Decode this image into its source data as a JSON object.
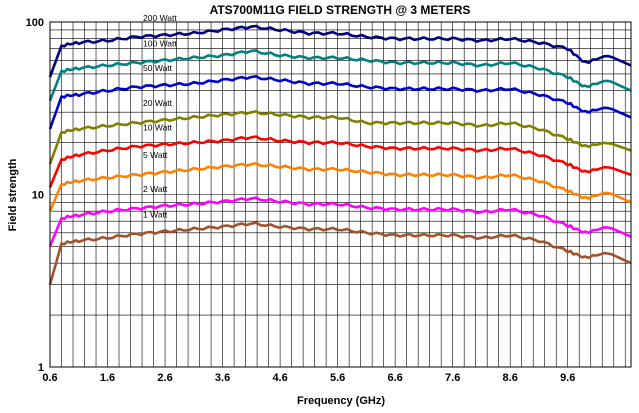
{
  "chart_data": {
    "type": "line",
    "title": "ATS700M11G FIELD STRENGTH @ 3 METERS",
    "xlabel": "Frequency (GHz)",
    "ylabel": "Field strength",
    "yscale": "log",
    "xlim": [
      0.6,
      10.7
    ],
    "ylim": [
      1,
      100
    ],
    "xticks": [
      "0.6",
      "1.6",
      "2.6",
      "3.6",
      "4.6",
      "5.6",
      "6.6",
      "7.6",
      "8.6",
      "9.6"
    ],
    "yticks": [
      "1",
      "10",
      "100"
    ],
    "grid": true,
    "legend": "inline labels",
    "x": [
      0.6,
      0.8,
      1.1,
      1.6,
      2.1,
      2.6,
      3.1,
      3.6,
      4.1,
      4.6,
      5.1,
      5.6,
      6.1,
      6.6,
      7.1,
      7.6,
      8.1,
      8.6,
      9.1,
      9.6,
      9.9,
      10.3,
      10.7
    ],
    "series": [
      {
        "name": "200 Watt",
        "color": "#000080",
        "values": [
          48,
          73,
          76,
          78,
          82,
          84,
          86,
          90,
          94,
          90,
          86,
          86,
          82,
          80,
          80,
          80,
          78,
          80,
          76,
          70,
          58,
          64,
          56
        ]
      },
      {
        "name": "100 Watt",
        "color": "#008080",
        "values": [
          35,
          52,
          54,
          56,
          58,
          60,
          62,
          64,
          68,
          64,
          62,
          62,
          60,
          58,
          58,
          58,
          56,
          58,
          54,
          48,
          42,
          46,
          40
        ]
      },
      {
        "name": "50 Watt",
        "color": "#0000CC",
        "values": [
          24,
          37,
          38,
          40,
          42,
          43,
          44,
          46,
          48,
          46,
          44,
          44,
          42,
          41,
          41,
          41,
          40,
          41,
          38,
          34,
          30,
          32,
          28
        ]
      },
      {
        "name": "20 Watt",
        "color": "#808000",
        "values": [
          15,
          23,
          24,
          25,
          26,
          27,
          28,
          29,
          30,
          29,
          28,
          28,
          26,
          26,
          26,
          26,
          25,
          26,
          24,
          21,
          19,
          20,
          18
        ]
      },
      {
        "name": "10 Watt",
        "color": "#FF0000",
        "values": [
          11,
          16,
          17,
          18,
          19,
          19.5,
          20,
          20.5,
          21.5,
          20.5,
          20,
          20,
          19,
          18.5,
          18.5,
          18.5,
          18,
          18.5,
          17,
          15,
          13.5,
          14.5,
          13
        ]
      },
      {
        "name": "5 Watt",
        "color": "#FF8000",
        "values": [
          8,
          11.5,
          12,
          12.5,
          13,
          13.5,
          14,
          14.5,
          15,
          14.5,
          14,
          14,
          13.5,
          13,
          13,
          13,
          12.5,
          13,
          12,
          10.5,
          9.5,
          10.3,
          9
        ]
      },
      {
        "name": "2 Watt",
        "color": "#FF00FF",
        "values": [
          5,
          7.3,
          7.6,
          8,
          8.3,
          8.6,
          8.8,
          9.1,
          9.5,
          9.1,
          8.8,
          8.8,
          8.4,
          8.2,
          8.2,
          8.2,
          7.9,
          8.2,
          7.6,
          6.6,
          6,
          6.5,
          5.7
        ]
      },
      {
        "name": "1 Watt",
        "color": "#A0522D",
        "values": [
          3,
          5.2,
          5.4,
          5.6,
          5.9,
          6.1,
          6.3,
          6.5,
          6.8,
          6.5,
          6.3,
          6.3,
          6,
          5.8,
          5.8,
          5.8,
          5.6,
          5.8,
          5.4,
          4.7,
          4.3,
          4.6,
          4
        ]
      }
    ]
  }
}
